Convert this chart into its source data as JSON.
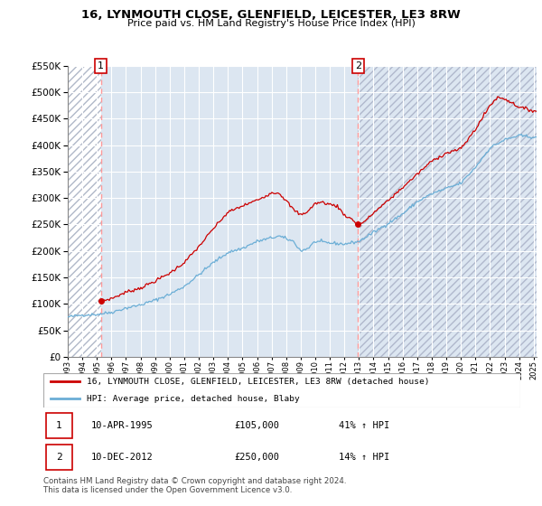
{
  "title": "16, LYNMOUTH CLOSE, GLENFIELD, LEICESTER, LE3 8RW",
  "subtitle": "Price paid vs. HM Land Registry's House Price Index (HPI)",
  "legend_line1": "16, LYNMOUTH CLOSE, GLENFIELD, LEICESTER, LE3 8RW (detached house)",
  "legend_line2": "HPI: Average price, detached house, Blaby",
  "footnote": "Contains HM Land Registry data © Crown copyright and database right 2024.\nThis data is licensed under the Open Government Licence v3.0.",
  "sale1_date": "10-APR-1995",
  "sale1_price": 105000,
  "sale1_hpi_text": "41% ↑ HPI",
  "sale1_year": 1995.27,
  "sale2_date": "10-DEC-2012",
  "sale2_price": 250000,
  "sale2_hpi_text": "14% ↑ HPI",
  "sale2_year": 2012.94,
  "hpi_color": "#6baed6",
  "price_color": "#cc0000",
  "vline_color": "#ff9999",
  "plot_bg_color": "#dce6f1",
  "hatch_color": "#c0c8d8",
  "ylim_max": 550000,
  "ylim_min": 0,
  "xlim_min": 1993.0,
  "xlim_max": 2025.2
}
